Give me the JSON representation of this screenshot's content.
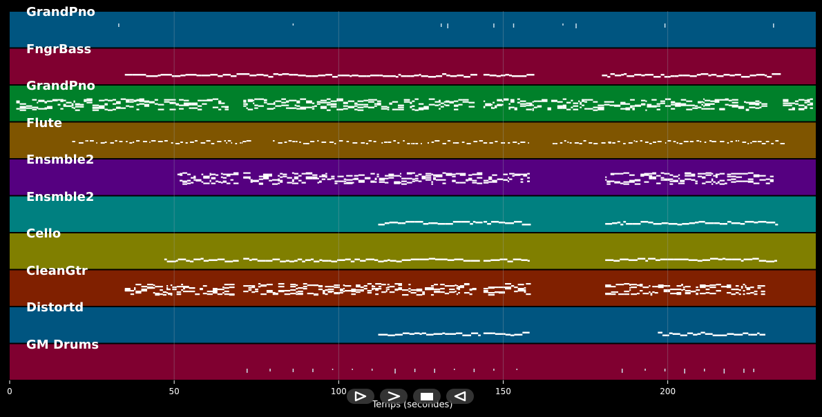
{
  "tracks": [
    {
      "name": "GrandPno",
      "color": "#005580",
      "style": "ticks",
      "events": [
        33,
        86,
        131,
        133,
        147,
        153,
        168,
        172,
        199,
        232
      ]
    },
    {
      "name": "FngrBass",
      "color": "#800030",
      "style": "line",
      "segments": [
        [
          35,
          69
        ],
        [
          71,
          141
        ],
        [
          144,
          158
        ],
        [
          180,
          233
        ]
      ]
    },
    {
      "name": "GrandPno",
      "color": "#00802a",
      "style": "dense",
      "segments": [
        [
          2,
          66
        ],
        [
          71,
          141
        ],
        [
          144,
          157
        ],
        [
          158,
          229
        ],
        [
          235,
          244
        ]
      ]
    },
    {
      "name": "Flute",
      "color": "#7f5500",
      "style": "sparse",
      "segments": [
        [
          19,
          73
        ],
        [
          80,
          112
        ],
        [
          113,
          125
        ],
        [
          127,
          158
        ],
        [
          165,
          183
        ],
        [
          182,
          235
        ]
      ]
    },
    {
      "name": "Ensmble2",
      "color": "#550080",
      "style": "dense",
      "segments": [
        [
          51,
          69
        ],
        [
          71,
          142
        ],
        [
          144,
          158
        ],
        [
          181,
          232
        ]
      ]
    },
    {
      "name": "Ensmble2",
      "color": "#008080",
      "style": "line",
      "segments": [
        [
          112,
          143
        ],
        [
          144,
          158
        ],
        [
          181,
          233
        ]
      ]
    },
    {
      "name": "Cello",
      "color": "#807f00",
      "style": "line",
      "segments": [
        [
          47,
          69
        ],
        [
          71,
          141
        ],
        [
          144,
          158
        ],
        [
          181,
          233
        ]
      ]
    },
    {
      "name": "CleanGtr",
      "color": "#802000",
      "style": "dense",
      "segments": [
        [
          35,
          68
        ],
        [
          71,
          141
        ],
        [
          144,
          158
        ],
        [
          181,
          229
        ]
      ]
    },
    {
      "name": "Distortd",
      "color": "#005580",
      "style": "line",
      "segments": [
        [
          112,
          143
        ],
        [
          144,
          158
        ],
        [
          197,
          229
        ]
      ]
    },
    {
      "name": "GM Drums",
      "color": "#800030",
      "style": "ticks",
      "events": [
        72,
        79,
        86,
        92,
        98,
        104,
        110,
        117,
        123,
        129,
        135,
        141,
        147,
        154,
        186,
        193,
        199,
        205,
        211,
        217,
        223,
        226
      ]
    }
  ],
  "axis": {
    "xlabel": "Temps (secondes)",
    "xlim": [
      0,
      245
    ],
    "ticks": [
      0,
      50,
      100,
      150,
      200
    ],
    "tick_labels": [
      "0",
      "50",
      "100",
      "150",
      "200"
    ]
  },
  "controls": [
    {
      "name": "play-button",
      "icon": "play-icon"
    },
    {
      "name": "forward-button",
      "icon": "forward-icon"
    },
    {
      "name": "stop-button",
      "icon": "stop-icon"
    },
    {
      "name": "rewind-button",
      "icon": "rewind-icon"
    }
  ],
  "colors": {
    "background": "#000000",
    "grid": "#9aa7b0",
    "notes": "#ffffff"
  }
}
